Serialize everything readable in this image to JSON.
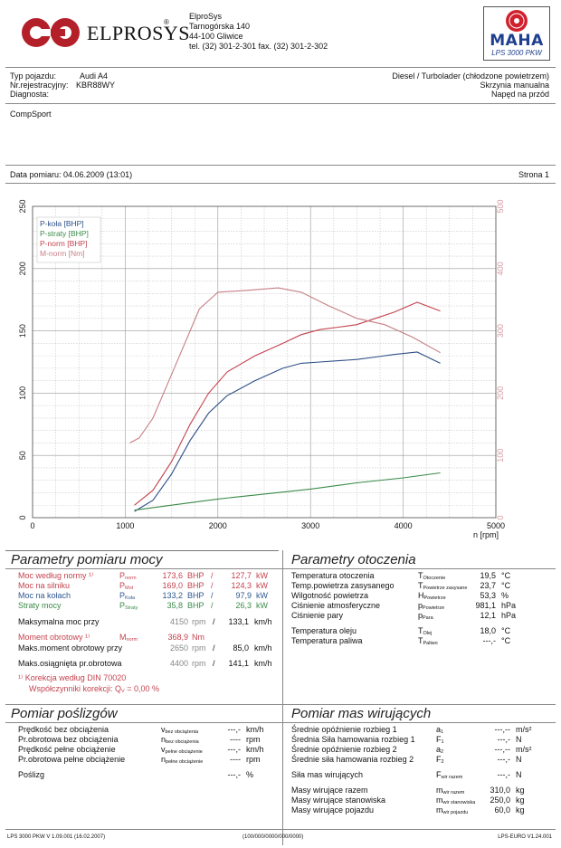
{
  "header": {
    "company": "ElproSys",
    "street": "Tarnogórska 140",
    "city": "44-100 Gliwice",
    "contact": "tel. (32) 301-2-301   fax. (32) 301-2-302",
    "logo_text": "ELPROSYS",
    "maha_text": "MAHA",
    "maha_model": "LPS 3000 PKW"
  },
  "vehicle": {
    "type_label": "Typ pojazdu:",
    "type_value": "Audi A4",
    "reg_label": "Nr.rejestracyjny:",
    "reg_value": "KBR88WY",
    "diag_label": "Diagnosta:",
    "engine": "Diesel / Turbolader (chłodzone powietrzem)",
    "gearbox": "Skrzynia manualna",
    "drive": "Napęd na przód",
    "customer": "CompSport"
  },
  "measurement": {
    "date_label": "Data pomiaru: 04.06.2009 (13:01)",
    "page_label": "Strona 1"
  },
  "chart_data": {
    "type": "line",
    "xlabel": "n [rpm]",
    "xlim": [
      0,
      5000
    ],
    "ylim_left": [
      0,
      250
    ],
    "ylim_right": [
      0,
      500
    ],
    "x_ticks": [
      "0",
      "1000",
      "2000",
      "3000",
      "4000",
      "5000"
    ],
    "y_ticks_left": [
      "0",
      "50",
      "100",
      "150",
      "200",
      "250"
    ],
    "y_ticks_right": [
      "0",
      "100",
      "200",
      "300",
      "400",
      "500"
    ],
    "grid": true,
    "legend_position": "top-left",
    "series": [
      {
        "name": "P-koła [BHP]",
        "color": "#2e4f86",
        "axis": "left",
        "x": [
          1100,
          1300,
          1500,
          1700,
          1900,
          2100,
          2400,
          2700,
          2900,
          3100,
          3300,
          3500,
          3700,
          3900,
          4150,
          4400
        ],
        "y": [
          5,
          14,
          35,
          62,
          84,
          98,
          110,
          120,
          124,
          125,
          126,
          127,
          129,
          131,
          133,
          124
        ]
      },
      {
        "name": "P-straty [BHP]",
        "color": "#3b8b48",
        "axis": "left",
        "x": [
          1100,
          1500,
          2000,
          2500,
          3000,
          3500,
          4000,
          4400
        ],
        "y": [
          6,
          10,
          15,
          19,
          23,
          28,
          32,
          36
        ]
      },
      {
        "name": "P-norm [BHP]",
        "color": "#c3434e",
        "axis": "left",
        "x": [
          1100,
          1300,
          1500,
          1700,
          1900,
          2100,
          2400,
          2700,
          2900,
          3100,
          3300,
          3500,
          3700,
          3900,
          4150,
          4400
        ],
        "y": [
          10,
          22,
          45,
          75,
          100,
          117,
          130,
          140,
          147,
          151,
          153,
          155,
          160,
          165,
          173,
          166
        ]
      },
      {
        "name": "M-norm [Nm]",
        "color": "#c67f86",
        "axis": "right",
        "x": [
          1050,
          1150,
          1300,
          1500,
          1700,
          1800,
          2000,
          2300,
          2650,
          2900,
          3200,
          3500,
          3800,
          4100,
          4400
        ],
        "y": [
          120,
          128,
          160,
          230,
          300,
          335,
          362,
          365,
          369,
          362,
          340,
          320,
          310,
          290,
          265
        ]
      }
    ]
  },
  "power": {
    "title": "Parametry pomiaru mocy",
    "rows": [
      {
        "label": "Moc według normy ¹⁾",
        "sym": "P",
        "sub": "norm",
        "v1": "173,6",
        "u1": "BHP",
        "v2": "127,7",
        "u2": "kW"
      },
      {
        "label": "Moc na silniku",
        "sym": "P",
        "sub": "Mot",
        "v1": "169,0",
        "u1": "BHP",
        "v2": "124,3",
        "u2": "kW"
      },
      {
        "label": "Moc na kołach",
        "sym": "P",
        "sub": "Koła",
        "v1": "133,2",
        "u1": "BHP",
        "v2": "97,9",
        "u2": "kW"
      },
      {
        "label": "Straty mocy",
        "sym": "P",
        "sub": "Straty",
        "v1": "35,8",
        "u1": "BHP",
        "v2": "26,3",
        "u2": "kW"
      }
    ],
    "max_power_label": "Maksymalna moc przy",
    "max_power_rpm": "4150",
    "max_power_speed": "133,1",
    "torque_label": "Moment obrotowy ¹⁾",
    "torque_sym": "M",
    "torque_sub": "norm",
    "torque_value": "368,9",
    "torque_unit": "Nm",
    "max_torque_label": "Maks.moment obrotowy przy",
    "max_torque_rpm": "2650",
    "max_torque_speed": "85,0",
    "max_rpm_label": "Maks.osiągnięta pr.obrotowa",
    "max_rpm_rpm": "4400",
    "max_rpm_speed": "141,1",
    "rpm_unit": "rpm",
    "speed_unit": "km/h",
    "note1": "¹⁾ Korekcja według DIN 70020",
    "note2": "Współczynniki korekcji: Q",
    "note2_value": "=   0,00 %"
  },
  "ambient": {
    "title": "Parametry otoczenia",
    "rows": [
      {
        "label": "Temperatura otoczenia",
        "sym": "T",
        "sub": "Otoczenie",
        "value": "19,5",
        "unit": "°C"
      },
      {
        "label": "Temp.powietrza zasysanego",
        "sym": "T",
        "sub": "Powietrze zasysane",
        "value": "23,7",
        "unit": "°C"
      },
      {
        "label": "Wilgotność powietrza",
        "sym": "H",
        "sub": "Powietrze",
        "value": "53,3",
        "unit": "%"
      },
      {
        "label": "Ciśnienie atmosferyczne",
        "sym": "p",
        "sub": "Powietrze",
        "value": "981,1",
        "unit": "hPa"
      },
      {
        "label": "Ciśnienie pary",
        "sym": "p",
        "sub": "Para",
        "value": "12,1",
        "unit": "hPa"
      },
      {
        "label": "Temperatura oleju",
        "sym": "T",
        "sub": "Olej",
        "value": "18,0",
        "unit": "°C"
      },
      {
        "label": "Temperatura paliwa",
        "sym": "T",
        "sub": "Paliwo",
        "value": "---,-",
        "unit": "°C"
      }
    ]
  },
  "slip": {
    "title": "Pomiar poślizgów",
    "rows": [
      {
        "label": "Prędkość bez obciążenia",
        "sym": "v",
        "sub": "bez obciążenia",
        "value": "---,-",
        "unit": "km/h"
      },
      {
        "label": "Pr.obrotowa bez obciążenia",
        "sym": "n",
        "sub": "bez obciążenia",
        "value": "----",
        "unit": "rpm"
      },
      {
        "label": "Prędkość pełne obciążenie",
        "sym": "v",
        "sub": "pełne obciążenie",
        "value": "---,-",
        "unit": "km/h"
      },
      {
        "label": "Pr.obrotowa pełne obciążenie",
        "sym": "n",
        "sub": "pełne obciążenie",
        "value": "----",
        "unit": "rpm"
      },
      {
        "label": "Poślizg",
        "sym": "",
        "sub": "",
        "value": "---,-",
        "unit": "%"
      }
    ]
  },
  "mass": {
    "title": "Pomiar mas wirujących",
    "rows": [
      {
        "label": "Średnie opóźnienie rozbieg 1",
        "sym": "a",
        "sub": "1",
        "value": "---,--",
        "unit": "m/s²"
      },
      {
        "label": "Średnia Siła hamowania rozbieg 1",
        "sym": "F",
        "sub": "1",
        "value": "---,-",
        "unit": "N"
      },
      {
        "label": "Średnie opóźnienie rozbieg 2",
        "sym": "a",
        "sub": "2",
        "value": "---,--",
        "unit": "m/s²"
      },
      {
        "label": "Średnie siła hamowania rozbieg 2",
        "sym": "F",
        "sub": "2",
        "value": "---,-",
        "unit": "N"
      },
      {
        "label": "Siła mas wirujących",
        "sym": "F",
        "sub": "wir razem",
        "value": "---,-",
        "unit": "N"
      },
      {
        "label": "Masy wirujące razem",
        "sym": "m",
        "sub": "wir razem",
        "value": "310,0",
        "unit": "kg"
      },
      {
        "label": "Masy wirujące stanowiska",
        "sym": "m",
        "sub": "wir stanowiska",
        "value": "250,0",
        "unit": "kg"
      },
      {
        "label": "Masy wirujące pojazdu",
        "sym": "m",
        "sub": "wir pojazdu",
        "value": "60,0",
        "unit": "kg"
      }
    ]
  },
  "footer": {
    "left": "LPS 3000 PKW V 1.09.001 (16.02.2007)",
    "center": "(100/000/0000/000/0000)",
    "right": "LPS-EURO V1.24.001"
  }
}
